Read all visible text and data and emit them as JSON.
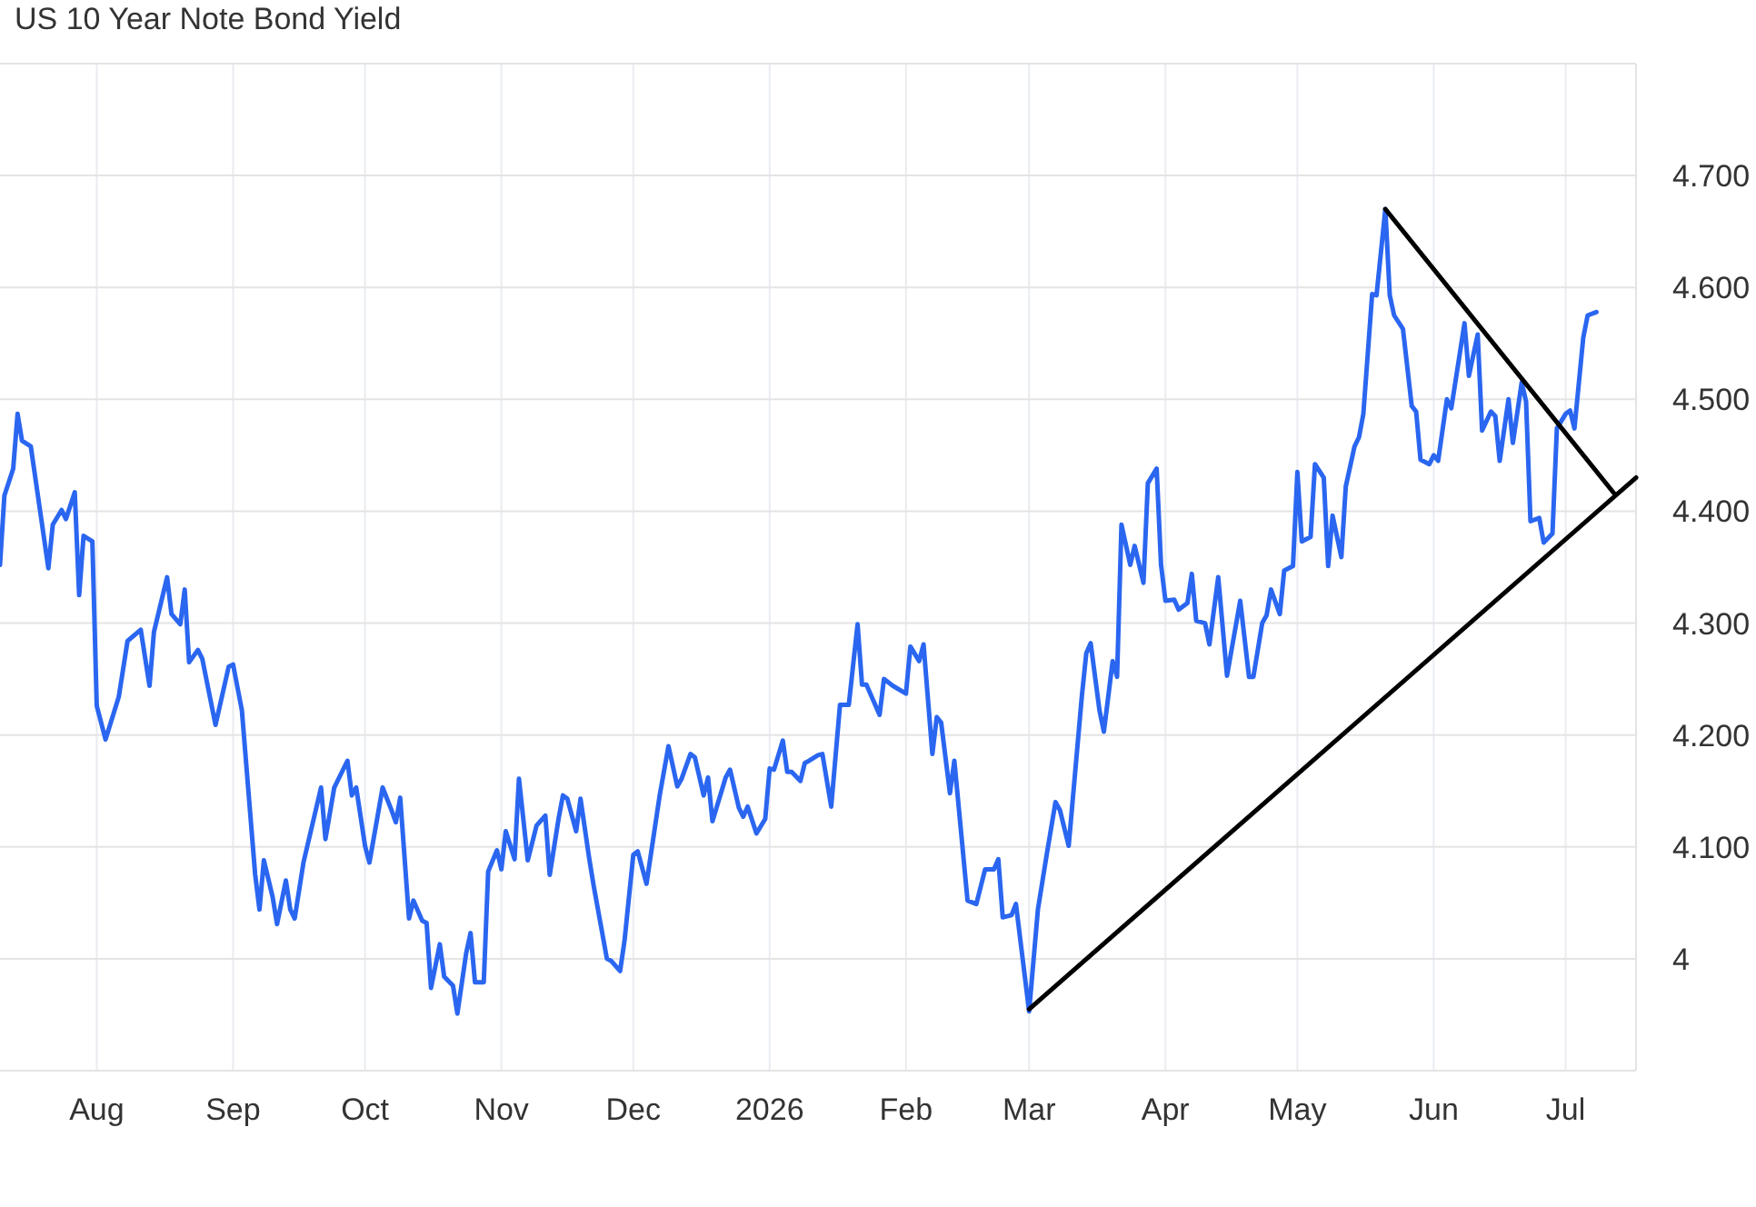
{
  "chart_data": {
    "type": "line",
    "title": "US 10 Year Note Bond Yield",
    "grid": true,
    "xlim": [
      "2025-07-10",
      "2026-07-17"
    ],
    "ylim": [
      3.9,
      4.8
    ],
    "xticks": [
      {
        "value": "2025-08-01",
        "label": "Aug"
      },
      {
        "value": "2025-09-01",
        "label": "Sep"
      },
      {
        "value": "2025-10-01",
        "label": "Oct"
      },
      {
        "value": "2025-11-01",
        "label": "Nov"
      },
      {
        "value": "2025-12-01",
        "label": "Dec"
      },
      {
        "value": "2026-01-01",
        "label": "2026"
      },
      {
        "value": "2026-02-01",
        "label": "Feb"
      },
      {
        "value": "2026-03-01",
        "label": "Mar"
      },
      {
        "value": "2026-04-01",
        "label": "Apr"
      },
      {
        "value": "2026-05-01",
        "label": "May"
      },
      {
        "value": "2026-06-01",
        "label": "Jun"
      },
      {
        "value": "2026-07-01",
        "label": "Jul"
      }
    ],
    "yticks": [
      4,
      {
        "value": 4.1,
        "label": "4.100"
      },
      {
        "value": 4.2,
        "label": "4.200"
      },
      {
        "value": 4.3,
        "label": "4.300"
      },
      {
        "value": 4.4,
        "label": "4.400"
      },
      {
        "value": 4.5,
        "label": "4.500"
      },
      {
        "value": 4.6,
        "label": "4.600"
      },
      {
        "value": 4.7,
        "label": "4.700"
      },
      {
        "value": 4.8,
        "label": null
      }
    ],
    "series": [
      {
        "color": "#2a66f0",
        "x": [
          "2025-07-10",
          "2025-07-11",
          "2025-07-13",
          "2025-07-14",
          "2025-07-15",
          "2025-07-17",
          "2025-07-21",
          "2025-07-22",
          "2025-07-24",
          "2025-07-25",
          "2025-07-27",
          "2025-07-28",
          "2025-07-29",
          "2025-07-31",
          "2025-08-01",
          "2025-08-03",
          "2025-08-06",
          "2025-08-08",
          "2025-08-11",
          "2025-08-13",
          "2025-08-14",
          "2025-08-17",
          "2025-08-18",
          "2025-08-20",
          "2025-08-21",
          "2025-08-22",
          "2025-08-24",
          "2025-08-25",
          "2025-08-28",
          "2025-08-31",
          "2025-09-01",
          "2025-09-03",
          "2025-09-06",
          "2025-09-07",
          "2025-09-08",
          "2025-09-10",
          "2025-09-11",
          "2025-09-13",
          "2025-09-14",
          "2025-09-15",
          "2025-09-17",
          "2025-09-21",
          "2025-09-22",
          "2025-09-24",
          "2025-09-27",
          "2025-09-28",
          "2025-09-29",
          "2025-10-01",
          "2025-10-02",
          "2025-10-05",
          "2025-10-07",
          "2025-10-08",
          "2025-10-09",
          "2025-10-11",
          "2025-10-12",
          "2025-10-14",
          "2025-10-15",
          "2025-10-16",
          "2025-10-18",
          "2025-10-19",
          "2025-10-21",
          "2025-10-22",
          "2025-10-24",
          "2025-10-25",
          "2025-10-26",
          "2025-10-28",
          "2025-10-29",
          "2025-10-31",
          "2025-11-01",
          "2025-11-02",
          "2025-11-04",
          "2025-11-05",
          "2025-11-07",
          "2025-11-09",
          "2025-11-11",
          "2025-11-12",
          "2025-11-14",
          "2025-11-15",
          "2025-11-16",
          "2025-11-18",
          "2025-11-19",
          "2025-11-21",
          "2025-11-22",
          "2025-11-25",
          "2025-11-26",
          "2025-11-28",
          "2025-11-29",
          "2025-12-01",
          "2025-12-02",
          "2025-12-04",
          "2025-12-07",
          "2025-12-09",
          "2025-12-11",
          "2025-12-12",
          "2025-12-14",
          "2025-12-15",
          "2025-12-17",
          "2025-12-18",
          "2025-12-19",
          "2025-12-22",
          "2025-12-23",
          "2025-12-25",
          "2025-12-26",
          "2025-12-27",
          "2025-12-29",
          "2025-12-31",
          "2026-01-01",
          "2026-01-02",
          "2026-01-04",
          "2026-01-05",
          "2026-01-06",
          "2026-01-08",
          "2026-01-09",
          "2026-01-10",
          "2026-01-12",
          "2026-01-13",
          "2026-01-15",
          "2026-01-17",
          "2026-01-19",
          "2026-01-21",
          "2026-01-22",
          "2026-01-23",
          "2026-01-26",
          "2026-01-27",
          "2026-01-29",
          "2026-02-01",
          "2026-02-02",
          "2026-02-04",
          "2026-02-05",
          "2026-02-07",
          "2026-02-08",
          "2026-02-09",
          "2026-02-11",
          "2026-02-12",
          "2026-02-15",
          "2026-02-17",
          "2026-02-19",
          "2026-02-21",
          "2026-02-22",
          "2026-02-23",
          "2026-02-25",
          "2026-02-26",
          "2026-03-01",
          "2026-03-03",
          "2026-03-05",
          "2026-03-07",
          "2026-03-08",
          "2026-03-10",
          "2026-03-13",
          "2026-03-14",
          "2026-03-15",
          "2026-03-17",
          "2026-03-18",
          "2026-03-20",
          "2026-03-21",
          "2026-03-22",
          "2026-03-24",
          "2026-03-25",
          "2026-03-27",
          "2026-03-28",
          "2026-03-30",
          "2026-03-31",
          "2026-04-01",
          "2026-04-03",
          "2026-04-04",
          "2026-04-06",
          "2026-04-07",
          "2026-04-08",
          "2026-04-10",
          "2026-04-11",
          "2026-04-13",
          "2026-04-15",
          "2026-04-18",
          "2026-04-20",
          "2026-04-21",
          "2026-04-23",
          "2026-04-24",
          "2026-04-25",
          "2026-04-27",
          "2026-04-28",
          "2026-04-30",
          "2026-05-01",
          "2026-05-02",
          "2026-05-04",
          "2026-05-05",
          "2026-05-07",
          "2026-05-08",
          "2026-05-09",
          "2026-05-11",
          "2026-05-12",
          "2026-05-14",
          "2026-05-15",
          "2026-05-16",
          "2026-05-18",
          "2026-05-19",
          "2026-05-21",
          "2026-05-22",
          "2026-05-23",
          "2026-05-25",
          "2026-05-27",
          "2026-05-28",
          "2026-05-29",
          "2026-05-31",
          "2026-06-01",
          "2026-06-02",
          "2026-06-04",
          "2026-06-05",
          "2026-06-08",
          "2026-06-09",
          "2026-06-11",
          "2026-06-12",
          "2026-06-14",
          "2026-06-15",
          "2026-06-16",
          "2026-06-18",
          "2026-06-19",
          "2026-06-21",
          "2026-06-22",
          "2026-06-23",
          "2026-06-25",
          "2026-06-26",
          "2026-06-28",
          "2026-06-29",
          "2026-07-01",
          "2026-07-02",
          "2026-07-03",
          "2026-07-05",
          "2026-07-06",
          "2026-07-08"
        ],
        "values": [
          4.352,
          4.414,
          4.438,
          4.487,
          4.463,
          4.458,
          4.349,
          4.388,
          4.401,
          4.393,
          4.417,
          4.325,
          4.378,
          4.373,
          4.226,
          4.196,
          4.234,
          4.284,
          4.294,
          4.244,
          4.292,
          4.341,
          4.308,
          4.299,
          4.33,
          4.265,
          4.276,
          4.268,
          4.209,
          4.261,
          4.263,
          4.222,
          4.076,
          4.044,
          4.088,
          4.055,
          4.031,
          4.07,
          4.044,
          4.036,
          4.086,
          4.153,
          4.107,
          4.153,
          4.177,
          4.146,
          4.153,
          4.101,
          4.086,
          4.153,
          4.133,
          4.122,
          4.144,
          4.036,
          4.052,
          4.034,
          4.032,
          3.974,
          4.013,
          3.984,
          3.976,
          3.951,
          4.005,
          4.023,
          3.979,
          3.979,
          4.078,
          4.097,
          4.08,
          4.114,
          4.089,
          4.161,
          4.088,
          4.119,
          4.128,
          4.075,
          4.125,
          4.146,
          4.143,
          4.114,
          4.143,
          4.089,
          4.065,
          4.0,
          3.998,
          3.989,
          4.016,
          4.093,
          4.096,
          4.067,
          4.146,
          4.19,
          4.154,
          4.161,
          4.183,
          4.18,
          4.146,
          4.162,
          4.123,
          4.162,
          4.169,
          4.135,
          4.127,
          4.136,
          4.112,
          4.125,
          4.17,
          4.169,
          4.195,
          4.167,
          4.167,
          4.159,
          4.175,
          4.177,
          4.182,
          4.183,
          4.136,
          4.227,
          4.227,
          4.299,
          4.245,
          4.245,
          4.218,
          4.25,
          4.244,
          4.237,
          4.279,
          4.266,
          4.281,
          4.183,
          4.216,
          4.211,
          4.148,
          4.177,
          4.052,
          4.049,
          4.08,
          4.08,
          4.089,
          4.037,
          4.039,
          4.049,
          3.953,
          4.044,
          4.093,
          4.14,
          4.133,
          4.101,
          4.235,
          4.273,
          4.282,
          4.222,
          4.203,
          4.266,
          4.252,
          4.388,
          4.352,
          4.369,
          4.336,
          4.425,
          4.438,
          4.352,
          4.32,
          4.321,
          4.312,
          4.318,
          4.344,
          4.302,
          4.3,
          4.281,
          4.341,
          4.253,
          4.32,
          4.252,
          4.252,
          4.3,
          4.307,
          4.33,
          4.308,
          4.347,
          4.351,
          4.435,
          4.373,
          4.377,
          4.442,
          4.43,
          4.351,
          4.396,
          4.359,
          4.422,
          4.458,
          4.466,
          4.487,
          4.594,
          4.593,
          4.67,
          4.593,
          4.575,
          4.563,
          4.494,
          4.489,
          4.446,
          4.442,
          4.45,
          4.445,
          4.5,
          4.492,
          4.568,
          4.521,
          4.558,
          4.472,
          4.489,
          4.485,
          4.445,
          4.5,
          4.461,
          4.515,
          4.498,
          4.391,
          4.394,
          4.372,
          4.38,
          4.474,
          4.487,
          4.49,
          4.474,
          4.555,
          4.575,
          4.578
        ]
      },
      {
        "type": "line",
        "color": "#000000",
        "x": [
          "2026-03-01",
          "2026-07-17"
        ],
        "values": [
          3.955,
          4.43
        ]
      },
      {
        "type": "line",
        "color": "#000000",
        "x": [
          "2026-05-21",
          "2026-07-12"
        ],
        "values": [
          4.67,
          4.416
        ]
      }
    ]
  }
}
